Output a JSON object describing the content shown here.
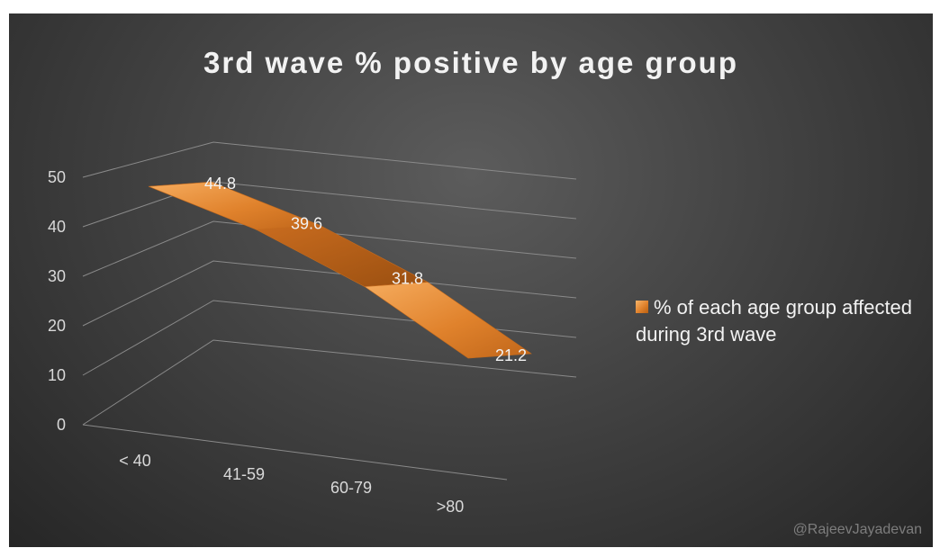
{
  "chart_data": {
    "type": "line",
    "title": "3rd wave % positive by age group",
    "categories": [
      "< 40",
      "41-59",
      "60-79",
      ">80"
    ],
    "series": [
      {
        "name": "% of each age group affected during 3rd wave",
        "values": [
          44.8,
          39.6,
          31.8,
          21.2
        ]
      }
    ],
    "data_labels": [
      "44.8",
      "39.6",
      "31.8",
      "21.2"
    ],
    "y_ticks": [
      "0",
      "10",
      "20",
      "30",
      "40",
      "50"
    ],
    "ylim": [
      0,
      50
    ],
    "xlabel": "",
    "ylabel": "",
    "grid": true,
    "legend_position": "right",
    "style": "3d-ribbon",
    "colors": {
      "series": "#e0822c",
      "background": "#404040",
      "text": "#f2f2f2",
      "grid": "#8a8a8a"
    }
  },
  "watermark": "@RajeevJayadevan"
}
